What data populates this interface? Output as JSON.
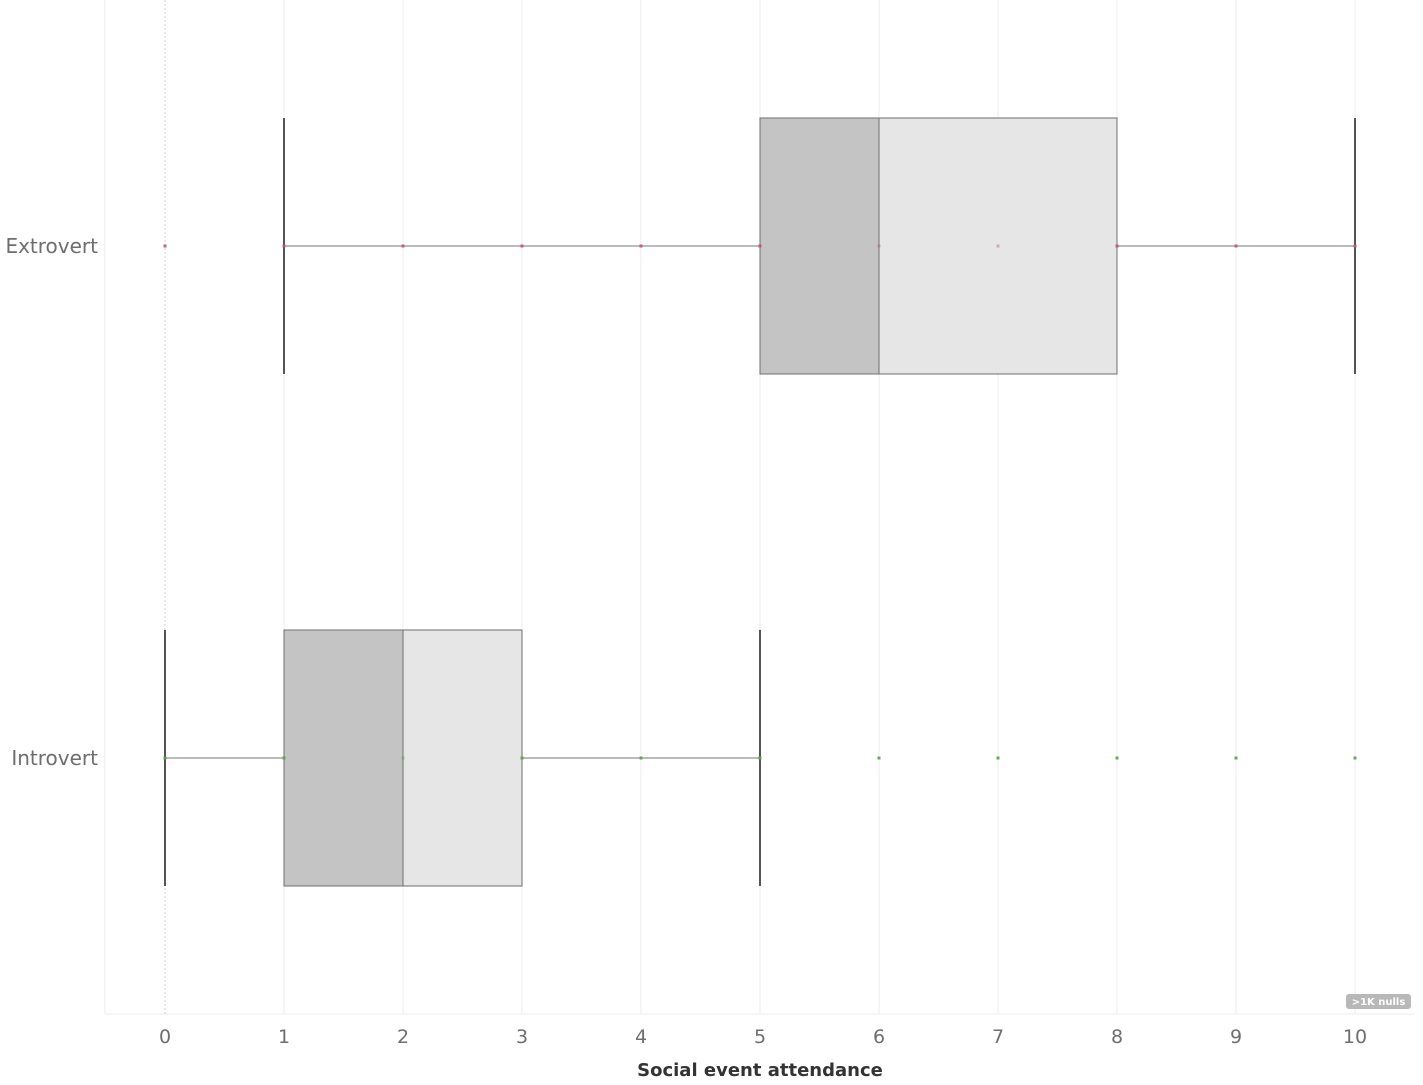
{
  "chart_data": {
    "type": "boxplot",
    "orientation": "horizontal",
    "xlabel": "Social event attendance",
    "xlim": [
      0,
      10
    ],
    "x_ticks": [
      "0",
      "1",
      "2",
      "3",
      "4",
      "5",
      "6",
      "7",
      "8",
      "9",
      "10"
    ],
    "grid": true,
    "categories": [
      "Extrovert",
      "Introvert"
    ],
    "boxes": [
      {
        "category": "Extrovert",
        "whisker_low": 1,
        "q1": 5,
        "median": 6,
        "q3": 8,
        "whisker_high": 10,
        "points": [
          0,
          1,
          2,
          3,
          4,
          5,
          6,
          7,
          8,
          9,
          10
        ],
        "point_color": "#c0566a"
      },
      {
        "category": "Introvert",
        "whisker_low": 0,
        "q1": 1,
        "median": 2,
        "q3": 3,
        "whisker_high": 5,
        "points": [
          0,
          1,
          2,
          3,
          4,
          5,
          6,
          7,
          8,
          9,
          10
        ],
        "point_color": "#59a14f"
      }
    ],
    "colors": {
      "box_lower": "#c4c4c4",
      "box_upper": "#e6e6e6",
      "whisker": "#555555",
      "grid": "#ececec",
      "zero_line": "#d0d0d0"
    },
    "nulls_indicator": ">1K nulls"
  }
}
